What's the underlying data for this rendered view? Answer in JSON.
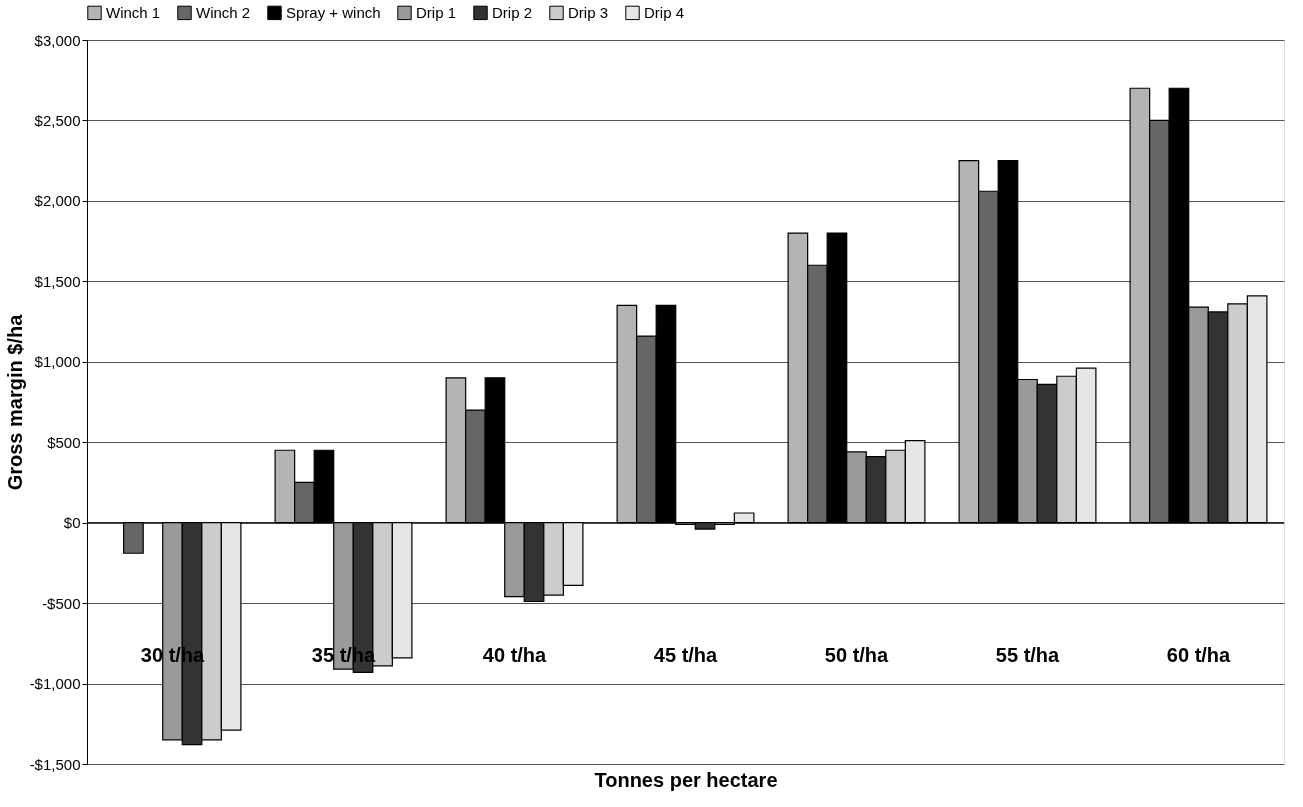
{
  "chart_data": {
    "type": "bar",
    "xlabel": "Tonnes per hectare",
    "ylabel": "Gross margin $/ha",
    "categories": [
      "30 t/ha",
      "35 t/ha",
      "40 t/ha",
      "45 t/ha",
      "50 t/ha",
      "55 t/ha",
      "60 t/ha"
    ],
    "series": [
      {
        "name": "Winch 1",
        "color": "#b4b4b4",
        "values": [
          null,
          450,
          900,
          1350,
          1800,
          2250,
          2700
        ]
      },
      {
        "name": "Winch 2",
        "color": "#666666",
        "values": [
          -190,
          250,
          700,
          1160,
          1600,
          2060,
          2500
        ]
      },
      {
        "name": "Spray + winch",
        "color": "#000000",
        "values": [
          null,
          450,
          900,
          1350,
          1800,
          2250,
          2700
        ]
      },
      {
        "name": "Drip 1",
        "color": "#9a9a9a",
        "values": [
          -1350,
          -910,
          -460,
          -10,
          440,
          890,
          1340
        ]
      },
      {
        "name": "Drip 2",
        "color": "#333333",
        "values": [
          -1380,
          -930,
          -490,
          -40,
          410,
          860,
          1310
        ]
      },
      {
        "name": "Drip 3",
        "color": "#cccccc",
        "values": [
          -1350,
          -890,
          -450,
          -10,
          450,
          910,
          1360
        ]
      },
      {
        "name": "Drip 4",
        "color": "#e6e6e6",
        "values": [
          -1290,
          -840,
          -390,
          60,
          510,
          960,
          1410
        ]
      }
    ],
    "ylim": [
      -1500,
      3000
    ],
    "yticks": [
      {
        "value": -1500,
        "label": "-$1,500"
      },
      {
        "value": -1000,
        "label": "-$1,000"
      },
      {
        "value": -500,
        "label": "-$500"
      },
      {
        "value": 0,
        "label": "$0"
      },
      {
        "value": 500,
        "label": "$500"
      },
      {
        "value": 1000,
        "label": "$1,000"
      },
      {
        "value": 1500,
        "label": "$1,500"
      },
      {
        "value": 2000,
        "label": "$2,000"
      },
      {
        "value": 2500,
        "label": "$2,500"
      },
      {
        "value": 3000,
        "label": "$3,000"
      }
    ],
    "grid": "y",
    "legend": "top"
  }
}
